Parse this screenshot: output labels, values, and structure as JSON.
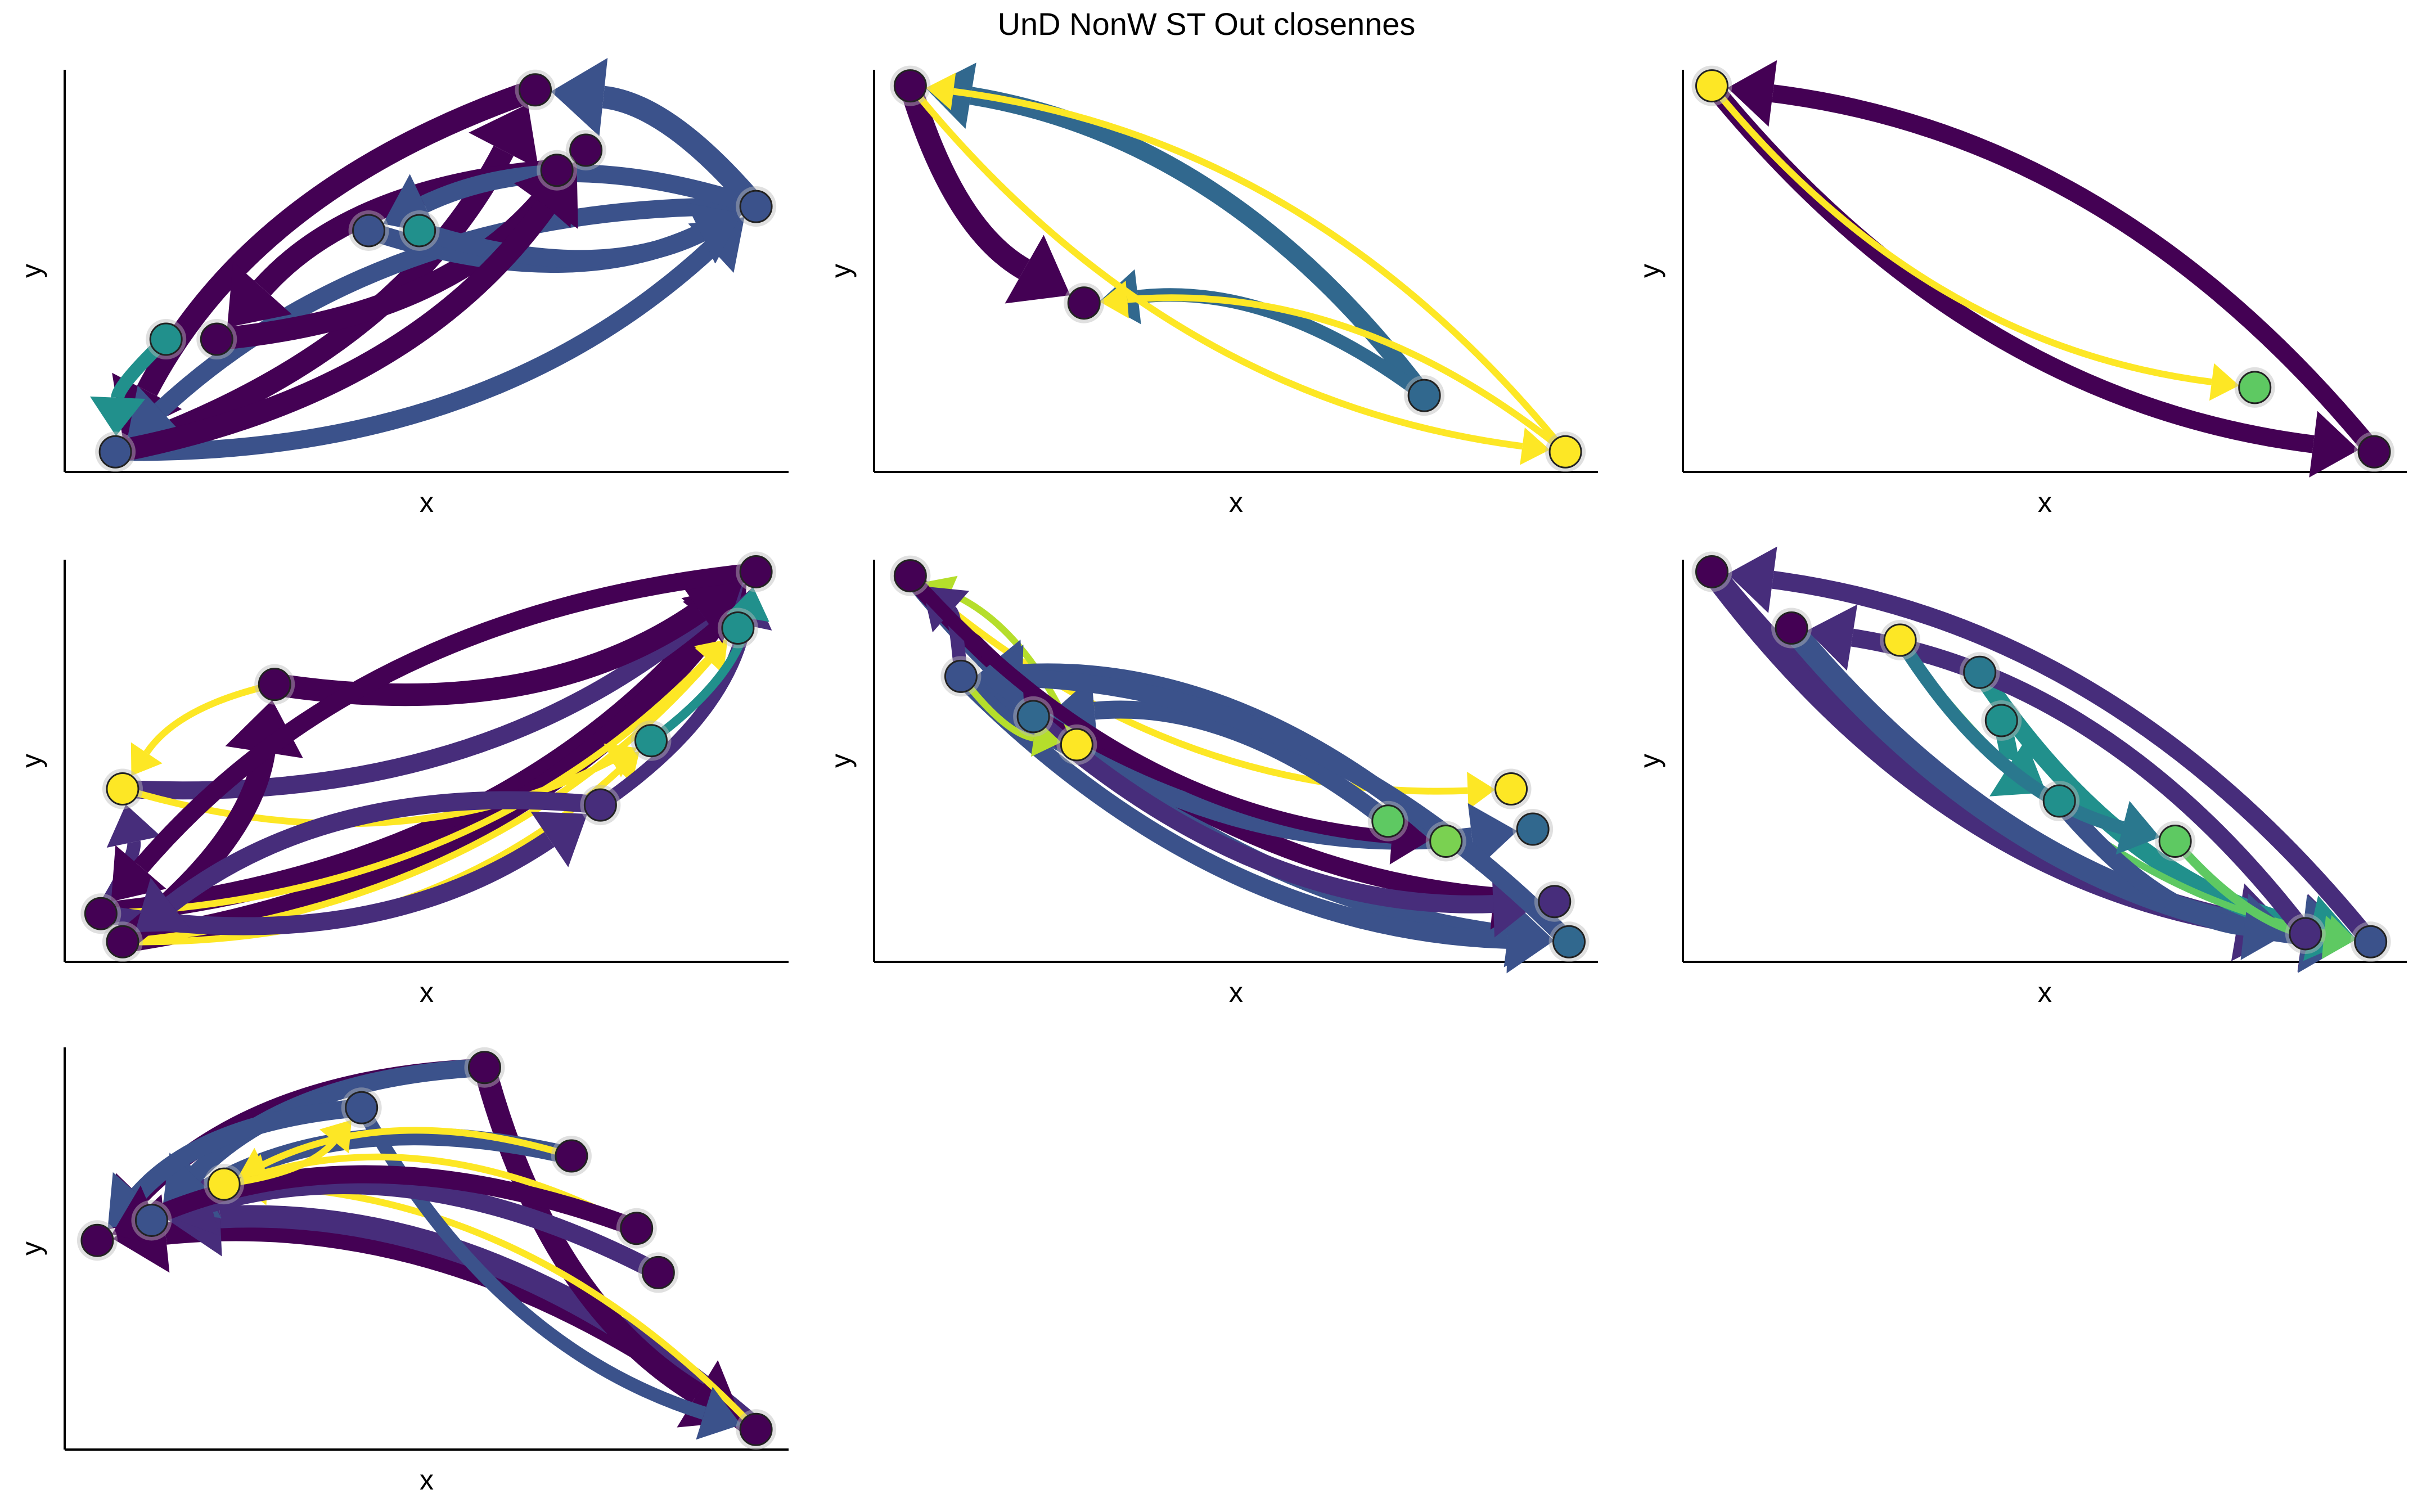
{
  "title": "UnD NonW ST Out closennes",
  "chart_data": [
    {
      "type": "network",
      "xlabel": "x",
      "ylabel": "y",
      "nodes": [
        {
          "x": 0.07,
          "y": 0.05,
          "color": "#3b528b"
        },
        {
          "x": 0.14,
          "y": 0.33,
          "color": "#21908c"
        },
        {
          "x": 0.21,
          "y": 0.33,
          "color": "#440154"
        },
        {
          "x": 0.42,
          "y": 0.6,
          "color": "#3b528b"
        },
        {
          "x": 0.49,
          "y": 0.6,
          "color": "#21908c"
        },
        {
          "x": 0.65,
          "y": 0.95,
          "color": "#440154"
        },
        {
          "x": 0.72,
          "y": 0.8,
          "color": "#440154"
        },
        {
          "x": 0.68,
          "y": 0.75,
          "color": "#440154"
        },
        {
          "x": 0.955,
          "y": 0.66,
          "color": "#3b528b"
        }
      ],
      "edges": [
        {
          "from": 8,
          "to": 5,
          "weight": 5,
          "color": "#3b528b"
        },
        {
          "from": 0,
          "to": 5,
          "weight": 5,
          "color": "#440154"
        },
        {
          "from": 0,
          "to": 8,
          "weight": 4,
          "color": "#3b528b"
        },
        {
          "from": 5,
          "to": 0,
          "weight": 5,
          "color": "#440154"
        },
        {
          "from": 8,
          "to": 0,
          "weight": 4,
          "color": "#3b528b"
        },
        {
          "from": 2,
          "to": 6,
          "weight": 5,
          "color": "#440154"
        },
        {
          "from": 3,
          "to": 8,
          "weight": 4,
          "color": "#3b528b"
        },
        {
          "from": 4,
          "to": 8,
          "weight": 4,
          "color": "#3b528b"
        },
        {
          "from": 1,
          "to": 0,
          "weight": 3,
          "color": "#21908c"
        },
        {
          "from": 7,
          "to": 2,
          "weight": 5,
          "color": "#440154"
        },
        {
          "from": 8,
          "to": 3,
          "weight": 4,
          "color": "#3b528b"
        },
        {
          "from": 0,
          "to": 6,
          "weight": 5,
          "color": "#440154"
        }
      ]
    },
    {
      "type": "network",
      "xlabel": "x",
      "ylabel": "y",
      "nodes": [
        {
          "x": 0.05,
          "y": 0.96,
          "color": "#440154"
        },
        {
          "x": 0.29,
          "y": 0.42,
          "color": "#440154"
        },
        {
          "x": 0.76,
          "y": 0.19,
          "color": "#31688e"
        },
        {
          "x": 0.955,
          "y": 0.05,
          "color": "#fde725"
        }
      ],
      "edges": [
        {
          "from": 2,
          "to": 0,
          "weight": 4,
          "color": "#31688e"
        },
        {
          "from": 0,
          "to": 1,
          "weight": 5,
          "color": "#440154"
        },
        {
          "from": 2,
          "to": 1,
          "weight": 3,
          "color": "#31688e"
        },
        {
          "from": 3,
          "to": 1,
          "weight": 1.5,
          "color": "#fde725"
        },
        {
          "from": 3,
          "to": 0,
          "weight": 1.5,
          "color": "#fde725"
        },
        {
          "from": 0,
          "to": 3,
          "weight": 1.5,
          "color": "#fde725"
        }
      ]
    },
    {
      "type": "network",
      "xlabel": "x",
      "ylabel": "y",
      "nodes": [
        {
          "x": 0.04,
          "y": 0.96,
          "color": "#fde725"
        },
        {
          "x": 0.79,
          "y": 0.21,
          "color": "#5ec962"
        },
        {
          "x": 0.955,
          "y": 0.05,
          "color": "#440154"
        }
      ],
      "edges": [
        {
          "from": 2,
          "to": 0,
          "weight": 4,
          "color": "#440154"
        },
        {
          "from": 0,
          "to": 2,
          "weight": 4,
          "color": "#440154"
        },
        {
          "from": 0,
          "to": 1,
          "weight": 1.5,
          "color": "#fde725"
        }
      ]
    },
    {
      "type": "network",
      "xlabel": "x",
      "ylabel": "y",
      "nodes": [
        {
          "x": 0.955,
          "y": 0.97,
          "color": "#440154"
        },
        {
          "x": 0.93,
          "y": 0.83,
          "color": "#21908c"
        },
        {
          "x": 0.81,
          "y": 0.55,
          "color": "#21908c"
        },
        {
          "x": 0.74,
          "y": 0.39,
          "color": "#472d7b"
        },
        {
          "x": 0.29,
          "y": 0.69,
          "color": "#440154"
        },
        {
          "x": 0.08,
          "y": 0.43,
          "color": "#fde725"
        },
        {
          "x": 0.05,
          "y": 0.12,
          "color": "#440154"
        },
        {
          "x": 0.08,
          "y": 0.05,
          "color": "#440154"
        }
      ],
      "edges": [
        {
          "from": 6,
          "to": 0,
          "weight": 5,
          "color": "#440154"
        },
        {
          "from": 7,
          "to": 0,
          "weight": 5,
          "color": "#440154"
        },
        {
          "from": 5,
          "to": 0,
          "weight": 4,
          "color": "#472d7b"
        },
        {
          "from": 6,
          "to": 1,
          "weight": 1.5,
          "color": "#fde725"
        },
        {
          "from": 7,
          "to": 1,
          "weight": 1.5,
          "color": "#fde725"
        },
        {
          "from": 7,
          "to": 2,
          "weight": 1.5,
          "color": "#fde725"
        },
        {
          "from": 5,
          "to": 2,
          "weight": 1.5,
          "color": "#fde725"
        },
        {
          "from": 6,
          "to": 3,
          "weight": 4,
          "color": "#472d7b"
        },
        {
          "from": 3,
          "to": 0,
          "weight": 3,
          "color": "#472d7b"
        },
        {
          "from": 4,
          "to": 0,
          "weight": 5,
          "color": "#440154"
        },
        {
          "from": 7,
          "to": 4,
          "weight": 5,
          "color": "#440154"
        },
        {
          "from": 2,
          "to": 0,
          "weight": 2,
          "color": "#21908c"
        },
        {
          "from": 6,
          "to": 5,
          "weight": 3,
          "color": "#472d7b"
        },
        {
          "from": 0,
          "to": 6,
          "weight": 4,
          "color": "#440154"
        },
        {
          "from": 3,
          "to": 7,
          "weight": 4,
          "color": "#472d7b"
        },
        {
          "from": 4,
          "to": 5,
          "weight": 1.5,
          "color": "#fde725"
        }
      ]
    },
    {
      "type": "network",
      "xlabel": "x",
      "ylabel": "y",
      "nodes": [
        {
          "x": 0.05,
          "y": 0.96,
          "color": "#440154"
        },
        {
          "x": 0.12,
          "y": 0.71,
          "color": "#3b528b"
        },
        {
          "x": 0.22,
          "y": 0.61,
          "color": "#31688e"
        },
        {
          "x": 0.28,
          "y": 0.54,
          "color": "#fde725"
        },
        {
          "x": 0.71,
          "y": 0.35,
          "color": "#5ec962"
        },
        {
          "x": 0.79,
          "y": 0.3,
          "color": "#7ad151"
        },
        {
          "x": 0.88,
          "y": 0.43,
          "color": "#fde725"
        },
        {
          "x": 0.91,
          "y": 0.33,
          "color": "#31688e"
        },
        {
          "x": 0.94,
          "y": 0.15,
          "color": "#472d7b"
        },
        {
          "x": 0.96,
          "y": 0.05,
          "color": "#31688e"
        }
      ],
      "edges": [
        {
          "from": 0,
          "to": 9,
          "weight": 4,
          "color": "#3b528b"
        },
        {
          "from": 0,
          "to": 8,
          "weight": 4,
          "color": "#440154"
        },
        {
          "from": 0,
          "to": 6,
          "weight": 1.5,
          "color": "#fde725"
        },
        {
          "from": 1,
          "to": 7,
          "weight": 4,
          "color": "#3b528b"
        },
        {
          "from": 1,
          "to": 9,
          "weight": 4,
          "color": "#3b528b"
        },
        {
          "from": 2,
          "to": 8,
          "weight": 4,
          "color": "#472d7b"
        },
        {
          "from": 3,
          "to": 0,
          "weight": 1.5,
          "color": "#b5de2b"
        },
        {
          "from": 1,
          "to": 0,
          "weight": 3,
          "color": "#472d7b"
        },
        {
          "from": 5,
          "to": 1,
          "weight": 4,
          "color": "#3b528b"
        },
        {
          "from": 4,
          "to": 2,
          "weight": 4,
          "color": "#3b528b"
        },
        {
          "from": 9,
          "to": 1,
          "weight": 4,
          "color": "#3b528b"
        },
        {
          "from": 0,
          "to": 5,
          "weight": 3,
          "color": "#440154"
        },
        {
          "from": 1,
          "to": 3,
          "weight": 1.5,
          "color": "#b5de2b"
        }
      ]
    },
    {
      "type": "network",
      "xlabel": "x",
      "ylabel": "y",
      "nodes": [
        {
          "x": 0.04,
          "y": 0.97,
          "color": "#440154"
        },
        {
          "x": 0.15,
          "y": 0.83,
          "color": "#440154"
        },
        {
          "x": 0.3,
          "y": 0.8,
          "color": "#fde725"
        },
        {
          "x": 0.41,
          "y": 0.72,
          "color": "#2a788e"
        },
        {
          "x": 0.44,
          "y": 0.6,
          "color": "#21908c"
        },
        {
          "x": 0.52,
          "y": 0.4,
          "color": "#21908c"
        },
        {
          "x": 0.68,
          "y": 0.3,
          "color": "#5ec962"
        },
        {
          "x": 0.86,
          "y": 0.07,
          "color": "#472d7b"
        },
        {
          "x": 0.95,
          "y": 0.05,
          "color": "#3b528b"
        }
      ],
      "edges": [
        {
          "from": 0,
          "to": 8,
          "weight": 5,
          "color": "#472d7b"
        },
        {
          "from": 0,
          "to": 7,
          "weight": 5,
          "color": "#472d7b"
        },
        {
          "from": 1,
          "to": 8,
          "weight": 5,
          "color": "#3b528b"
        },
        {
          "from": 3,
          "to": 8,
          "weight": 4,
          "color": "#21908c"
        },
        {
          "from": 8,
          "to": 0,
          "weight": 4,
          "color": "#472d7b"
        },
        {
          "from": 2,
          "to": 8,
          "weight": 1.5,
          "color": "#5ec962"
        },
        {
          "from": 5,
          "to": 7,
          "weight": 4,
          "color": "#3b528b"
        },
        {
          "from": 6,
          "to": 8,
          "weight": 2,
          "color": "#5ec962"
        },
        {
          "from": 4,
          "to": 5,
          "weight": 4,
          "color": "#21908c"
        },
        {
          "from": 7,
          "to": 1,
          "weight": 4,
          "color": "#472d7b"
        },
        {
          "from": 2,
          "to": 6,
          "weight": 3,
          "color": "#2a788e"
        }
      ]
    },
    {
      "type": "network",
      "xlabel": "x",
      "ylabel": "y",
      "nodes": [
        {
          "x": 0.045,
          "y": 0.52,
          "color": "#440154"
        },
        {
          "x": 0.12,
          "y": 0.57,
          "color": "#3b528b"
        },
        {
          "x": 0.22,
          "y": 0.66,
          "color": "#fde725"
        },
        {
          "x": 0.41,
          "y": 0.85,
          "color": "#3b528b"
        },
        {
          "x": 0.58,
          "y": 0.95,
          "color": "#440154"
        },
        {
          "x": 0.7,
          "y": 0.73,
          "color": "#440154"
        },
        {
          "x": 0.79,
          "y": 0.55,
          "color": "#440154"
        },
        {
          "x": 0.82,
          "y": 0.44,
          "color": "#440154"
        },
        {
          "x": 0.955,
          "y": 0.05,
          "color": "#440154"
        }
      ],
      "edges": [
        {
          "from": 8,
          "to": 0,
          "weight": 5,
          "color": "#440154"
        },
        {
          "from": 8,
          "to": 1,
          "weight": 5,
          "color": "#472d7b"
        },
        {
          "from": 4,
          "to": 8,
          "weight": 5,
          "color": "#440154"
        },
        {
          "from": 8,
          "to": 2,
          "weight": 1.5,
          "color": "#fde725"
        },
        {
          "from": 4,
          "to": 0,
          "weight": 4,
          "color": "#440154"
        },
        {
          "from": 3,
          "to": 8,
          "weight": 3,
          "color": "#3b528b"
        },
        {
          "from": 5,
          "to": 1,
          "weight": 4,
          "color": "#3b528b"
        },
        {
          "from": 6,
          "to": 2,
          "weight": 1.5,
          "color": "#fde725"
        },
        {
          "from": 7,
          "to": 1,
          "weight": 4,
          "color": "#472d7b"
        },
        {
          "from": 5,
          "to": 2,
          "weight": 1.5,
          "color": "#fde725"
        },
        {
          "from": 4,
          "to": 1,
          "weight": 4,
          "color": "#3b528b"
        },
        {
          "from": 3,
          "to": 0,
          "weight": 4,
          "color": "#3b528b"
        },
        {
          "from": 6,
          "to": 0,
          "weight": 4,
          "color": "#440154"
        },
        {
          "from": 2,
          "to": 3,
          "weight": 1.5,
          "color": "#fde725"
        }
      ]
    }
  ]
}
